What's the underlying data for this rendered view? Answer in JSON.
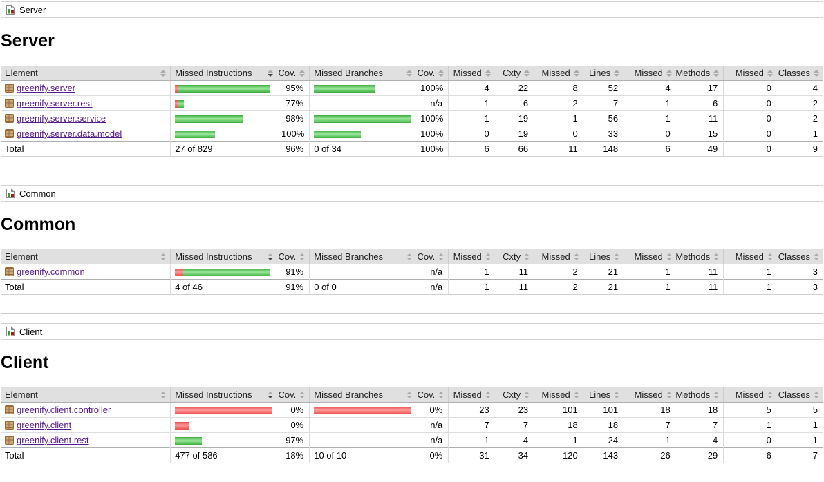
{
  "columns": {
    "element": "Element",
    "missed_instructions": "Missed Instructions",
    "cov": "Cov.",
    "missed_branches": "Missed Branches",
    "missed": "Missed",
    "cxty": "Cxty",
    "lines": "Lines",
    "methods": "Methods",
    "classes": "Classes"
  },
  "colors": {
    "bar_green": "#4cbb4c",
    "bar_red": "#f05555",
    "link_purple": "#551a8b",
    "header_gray": "#e0e0e0"
  },
  "sections": [
    {
      "breadcrumb": "Server",
      "title": "Server",
      "rows": [
        {
          "name": "greenify.server",
          "instr_red": 5,
          "instr_green": 133,
          "instr_cov": "95%",
          "branch_red": 0,
          "branch_green": 88,
          "branch_cov": "100%",
          "missed": "4",
          "cxty": "22",
          "missed_l": "8",
          "lines": "52",
          "missed_m": "4",
          "methods": "17",
          "missed_c": "0",
          "classes": "4"
        },
        {
          "name": "greenify.server.rest",
          "instr_red": 4,
          "instr_green": 9,
          "instr_cov": "77%",
          "branch_red": 0,
          "branch_green": 0,
          "branch_cov": "n/a",
          "missed": "1",
          "cxty": "6",
          "missed_l": "2",
          "lines": "7",
          "missed_m": "1",
          "methods": "6",
          "missed_c": "0",
          "classes": "2"
        },
        {
          "name": "greenify.server.service",
          "instr_red": 0,
          "instr_green": 98,
          "instr_cov": "98%",
          "branch_red": 0,
          "branch_green": 140,
          "branch_cov": "100%",
          "missed": "1",
          "cxty": "19",
          "missed_l": "1",
          "lines": "56",
          "missed_m": "1",
          "methods": "11",
          "missed_c": "0",
          "classes": "2"
        },
        {
          "name": "greenify.server.data.model",
          "instr_red": 0,
          "instr_green": 58,
          "instr_cov": "100%",
          "branch_red": 0,
          "branch_green": 68,
          "branch_cov": "100%",
          "missed": "0",
          "cxty": "19",
          "missed_l": "0",
          "lines": "33",
          "missed_m": "0",
          "methods": "15",
          "missed_c": "0",
          "classes": "1"
        }
      ],
      "total": {
        "label": "Total",
        "instr": "27 of 829",
        "instr_cov": "96%",
        "branch": "0 of 34",
        "branch_cov": "100%",
        "missed": "6",
        "cxty": "66",
        "missed_l": "11",
        "lines": "148",
        "missed_m": "6",
        "methods": "49",
        "missed_c": "0",
        "classes": "9"
      }
    },
    {
      "breadcrumb": "Common",
      "title": "Common",
      "rows": [
        {
          "name": "greenify.common",
          "instr_red": 12,
          "instr_green": 126,
          "instr_cov": "91%",
          "branch_red": 0,
          "branch_green": 0,
          "branch_cov": "n/a",
          "missed": "1",
          "cxty": "11",
          "missed_l": "2",
          "lines": "21",
          "missed_m": "1",
          "methods": "11",
          "missed_c": "1",
          "classes": "3"
        }
      ],
      "total": {
        "label": "Total",
        "instr": "4 of 46",
        "instr_cov": "91%",
        "branch": "0 of 0",
        "branch_cov": "n/a",
        "missed": "1",
        "cxty": "11",
        "missed_l": "2",
        "lines": "21",
        "missed_m": "1",
        "methods": "11",
        "missed_c": "1",
        "classes": "3"
      }
    },
    {
      "breadcrumb": "Client",
      "title": "Client",
      "rows": [
        {
          "name": "greenify.client.controller",
          "instr_red": 140,
          "instr_green": 0,
          "instr_cov": "0%",
          "branch_red": 140,
          "branch_green": 0,
          "branch_cov": "0%",
          "missed": "23",
          "cxty": "23",
          "missed_l": "101",
          "lines": "101",
          "missed_m": "18",
          "methods": "18",
          "missed_c": "5",
          "classes": "5"
        },
        {
          "name": "greenify.client",
          "instr_red": 21,
          "instr_green": 0,
          "instr_cov": "0%",
          "branch_red": 0,
          "branch_green": 0,
          "branch_cov": "n/a",
          "missed": "7",
          "cxty": "7",
          "missed_l": "18",
          "lines": "18",
          "missed_m": "7",
          "methods": "7",
          "missed_c": "1",
          "classes": "1"
        },
        {
          "name": "greenify.client.rest",
          "instr_red": 0,
          "instr_green": 39,
          "instr_cov": "97%",
          "branch_red": 0,
          "branch_green": 0,
          "branch_cov": "n/a",
          "missed": "1",
          "cxty": "4",
          "missed_l": "1",
          "lines": "24",
          "missed_m": "1",
          "methods": "4",
          "missed_c": "0",
          "classes": "1"
        }
      ],
      "total": {
        "label": "Total",
        "instr": "477 of 586",
        "instr_cov": "18%",
        "branch": "10 of 10",
        "branch_cov": "0%",
        "missed": "31",
        "cxty": "34",
        "missed_l": "120",
        "lines": "143",
        "missed_m": "26",
        "methods": "29",
        "missed_c": "6",
        "classes": "7"
      }
    }
  ]
}
